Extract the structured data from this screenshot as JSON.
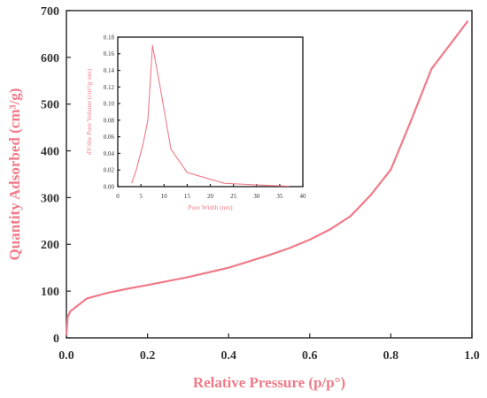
{
  "colors": {
    "series": "#f07a88",
    "axis_title": "#f07a88",
    "axis": "#222222",
    "tick_text": "#333333"
  },
  "chart_data": [
    {
      "type": "line",
      "title": "",
      "xlabel": "Relative Pressure (p/p°)",
      "ylabel": "Quantity Adsorbed (cm³/g)",
      "xlim": [
        0,
        1.0
      ],
      "ylim": [
        0,
        700
      ],
      "xticks": [
        "0.0",
        "0.2",
        "0.4",
        "0.6",
        "0.8",
        "1.0"
      ],
      "yticks": [
        "0",
        "100",
        "200",
        "300",
        "400",
        "500",
        "600",
        "700"
      ],
      "grid": false,
      "series": [
        {
          "x": [
            0.0,
            0.003,
            0.01,
            0.05,
            0.1,
            0.15,
            0.2,
            0.3,
            0.4,
            0.5,
            0.55,
            0.6,
            0.65,
            0.7,
            0.75,
            0.8,
            0.85,
            0.9,
            0.95,
            0.99
          ],
          "y": [
            5,
            45,
            57,
            84,
            96,
            105,
            113,
            130,
            150,
            177,
            192,
            210,
            232,
            260,
            305,
            360,
            465,
            575,
            632,
            678
          ]
        }
      ]
    },
    {
      "type": "line",
      "title": "",
      "xlabel": "Pore Width (nm)",
      "ylabel": "dV/dw Pore Volume (cm³/g·nm)",
      "xlim": [
        0,
        40
      ],
      "ylim": [
        0,
        0.18
      ],
      "xticks": [
        "0",
        "5",
        "10",
        "15",
        "20",
        "25",
        "30",
        "35",
        "40"
      ],
      "yticks": [
        "0.00",
        "0.02",
        "0.04",
        "0.06",
        "0.08",
        "0.10",
        "0.12",
        "0.14",
        "0.16",
        "0.18"
      ],
      "grid": false,
      "series": [
        {
          "x": [
            3,
            4,
            5.5,
            6.5,
            7.5,
            9,
            11.5,
            15,
            18,
            23,
            30,
            37
          ],
          "y": [
            0.004,
            0.02,
            0.052,
            0.08,
            0.17,
            0.125,
            0.045,
            0.017,
            0.012,
            0.004,
            0.002,
            0.0005
          ]
        }
      ]
    }
  ]
}
